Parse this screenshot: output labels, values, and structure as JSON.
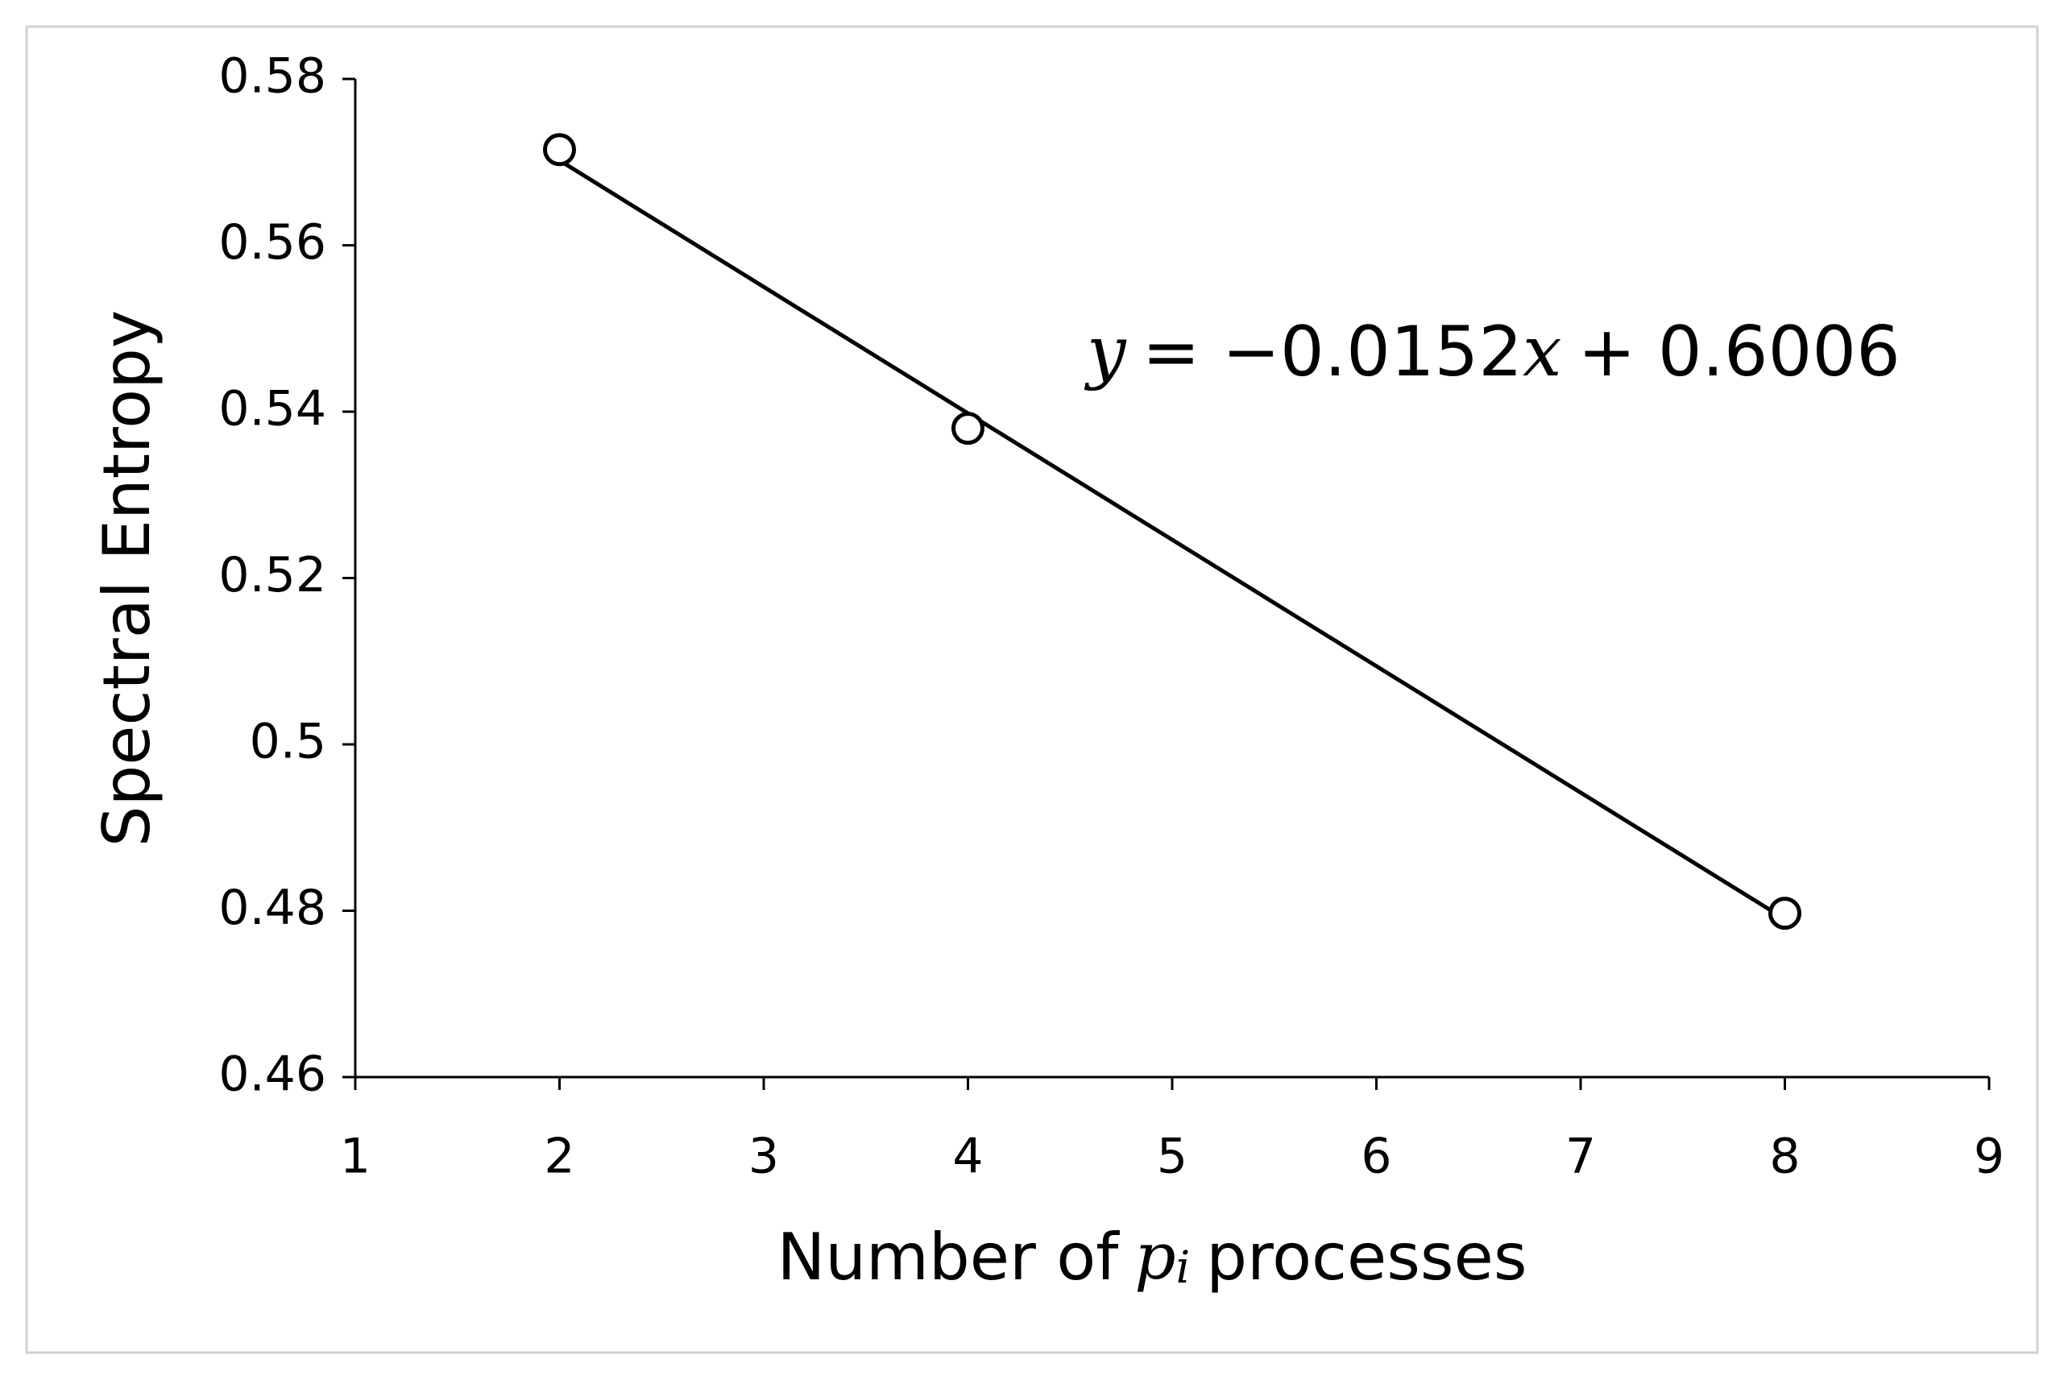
{
  "chart_data": {
    "type": "scatter",
    "x_label": [
      "Number of",
      "p",
      "i",
      "processes"
    ],
    "y_label": "Spectral Entropy",
    "annotation": [
      "y",
      "= −0.0152",
      "x",
      "+ 0.6006"
    ],
    "x": [
      2,
      4,
      8
    ],
    "values": [
      0.5715,
      0.538,
      0.4797
    ],
    "color": "#000000",
    "trendline": {
      "slope": -0.0152,
      "intercept": 0.6006
    },
    "xlim": [
      1,
      9
    ],
    "xticks": [
      1,
      2,
      3,
      4,
      5,
      6,
      7,
      8,
      9
    ],
    "ylim": [
      0.46,
      0.58
    ],
    "yticks": [
      0.46,
      0.48,
      0.5,
      0.52,
      0.54,
      0.56,
      0.58
    ],
    "grid": false
  }
}
